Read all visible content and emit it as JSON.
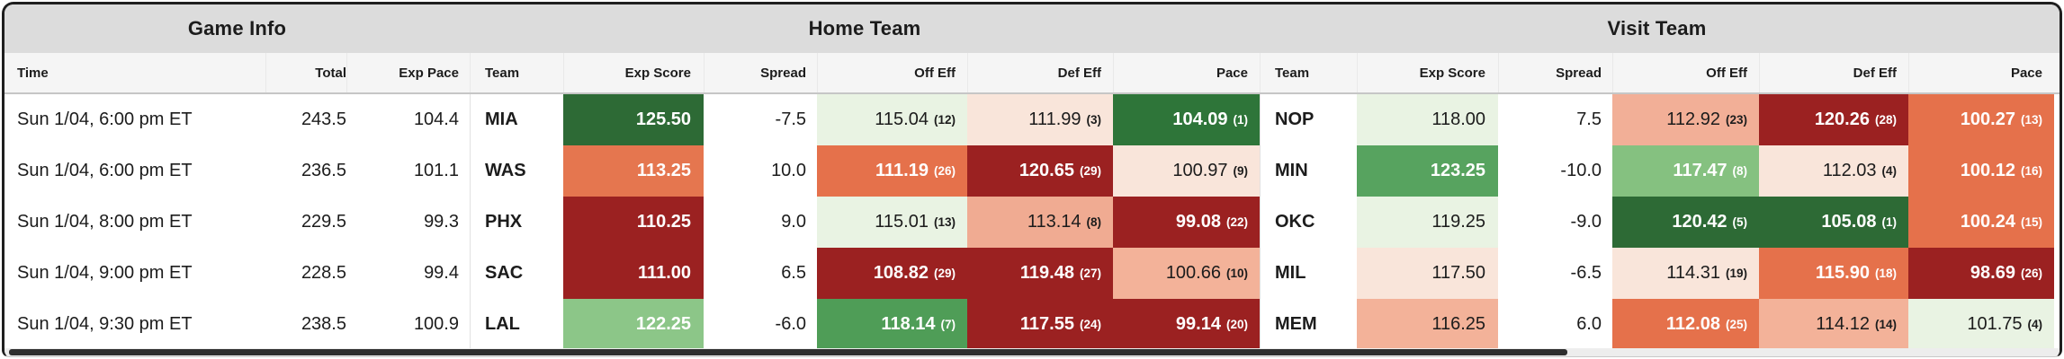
{
  "groups": {
    "game_info": "Game Info",
    "home": "Home Team",
    "visit": "Visit Team"
  },
  "columns": {
    "time": "Time",
    "total": "Total",
    "exp_pace": "Exp Pace",
    "team": "Team",
    "exp_score": "Exp Score",
    "spread": "Spread",
    "off_eff": "Off Eff",
    "def_eff": "Def Eff",
    "pace": "Pace"
  },
  "palette": {
    "dark_green": "#2d6a35",
    "mid_green": "#57a35f",
    "light_green": "#8cc688",
    "pale_green": "#e9f3e3",
    "pale_pink": "#f9e5da",
    "light_salmon": "#f3b299",
    "salmon": "#e5714b",
    "dark_red": "#9b2121",
    "header_band": "#dcdcdc",
    "header_row": "#f5f5f5",
    "text_dark": "#1c1c1c"
  },
  "rows": [
    {
      "time": "Sun 1/04, 6:00 pm ET",
      "total": "243.5",
      "exp_pace": "104.4",
      "home": {
        "team": "MIA",
        "spread": "-7.5",
        "exp_score": {
          "v": "125.50",
          "bg": "#2d6a35",
          "fg": "#ffffff"
        },
        "off_eff": {
          "v": "115.04",
          "r": "(12)",
          "bg": "#e9f3e3",
          "fg": "#1c1c1c"
        },
        "def_eff": {
          "v": "111.99",
          "r": "(3)",
          "bg": "#f9e5da",
          "fg": "#1c1c1c"
        },
        "pace": {
          "v": "104.09",
          "r": "(1)",
          "bg": "#2e7539",
          "fg": "#ffffff"
        }
      },
      "visit": {
        "team": "NOP",
        "spread": "7.5",
        "exp_score": {
          "v": "118.00",
          "bg": "#e9f3e3",
          "fg": "#1c1c1c"
        },
        "off_eff": {
          "v": "112.92",
          "r": "(23)",
          "bg": "#f2af97",
          "fg": "#1c1c1c"
        },
        "def_eff": {
          "v": "120.26",
          "r": "(28)",
          "bg": "#9b2121",
          "fg": "#ffffff"
        },
        "pace": {
          "v": "100.27",
          "r": "(13)",
          "bg": "#e5714b",
          "fg": "#ffffff"
        }
      }
    },
    {
      "time": "Sun 1/04, 6:00 pm ET",
      "total": "236.5",
      "exp_pace": "101.1",
      "home": {
        "team": "WAS",
        "spread": "10.0",
        "exp_score": {
          "v": "113.25",
          "bg": "#e5764f",
          "fg": "#ffffff"
        },
        "off_eff": {
          "v": "111.19",
          "r": "(26)",
          "bg": "#e5714b",
          "fg": "#ffffff"
        },
        "def_eff": {
          "v": "120.65",
          "r": "(29)",
          "bg": "#9b2121",
          "fg": "#ffffff"
        },
        "pace": {
          "v": "100.97",
          "r": "(9)",
          "bg": "#f9e5da",
          "fg": "#1c1c1c"
        }
      },
      "visit": {
        "team": "MIN",
        "spread": "-10.0",
        "exp_score": {
          "v": "123.25",
          "bg": "#57a35f",
          "fg": "#ffffff"
        },
        "off_eff": {
          "v": "117.47",
          "r": "(8)",
          "bg": "#85c180",
          "fg": "#ffffff"
        },
        "def_eff": {
          "v": "112.03",
          "r": "(4)",
          "bg": "#f9e5da",
          "fg": "#1c1c1c"
        },
        "pace": {
          "v": "100.12",
          "r": "(16)",
          "bg": "#e5714b",
          "fg": "#ffffff"
        }
      }
    },
    {
      "time": "Sun 1/04, 8:00 pm ET",
      "total": "229.5",
      "exp_pace": "99.3",
      "home": {
        "team": "PHX",
        "spread": "9.0",
        "exp_score": {
          "v": "110.25",
          "bg": "#9b2121",
          "fg": "#ffffff"
        },
        "off_eff": {
          "v": "115.01",
          "r": "(13)",
          "bg": "#e9f3e3",
          "fg": "#1c1c1c"
        },
        "def_eff": {
          "v": "113.14",
          "r": "(8)",
          "bg": "#f0ab92",
          "fg": "#1c1c1c"
        },
        "pace": {
          "v": "99.08",
          "r": "(22)",
          "bg": "#9b2121",
          "fg": "#ffffff"
        }
      },
      "visit": {
        "team": "OKC",
        "spread": "-9.0",
        "exp_score": {
          "v": "119.25",
          "bg": "#e9f3e3",
          "fg": "#1c1c1c"
        },
        "off_eff": {
          "v": "120.42",
          "r": "(5)",
          "bg": "#2d6a35",
          "fg": "#ffffff"
        },
        "def_eff": {
          "v": "105.08",
          "r": "(1)",
          "bg": "#2d6a35",
          "fg": "#ffffff"
        },
        "pace": {
          "v": "100.24",
          "r": "(15)",
          "bg": "#e5714b",
          "fg": "#ffffff"
        }
      }
    },
    {
      "time": "Sun 1/04, 9:00 pm ET",
      "total": "228.5",
      "exp_pace": "99.4",
      "home": {
        "team": "SAC",
        "spread": "6.5",
        "exp_score": {
          "v": "111.00",
          "bg": "#9b2121",
          "fg": "#ffffff"
        },
        "off_eff": {
          "v": "108.82",
          "r": "(29)",
          "bg": "#9b2121",
          "fg": "#ffffff"
        },
        "def_eff": {
          "v": "119.48",
          "r": "(27)",
          "bg": "#9b2121",
          "fg": "#ffffff"
        },
        "pace": {
          "v": "100.66",
          "r": "(10)",
          "bg": "#f3b299",
          "fg": "#1c1c1c"
        }
      },
      "visit": {
        "team": "MIL",
        "spread": "-6.5",
        "exp_score": {
          "v": "117.50",
          "bg": "#f9e5da",
          "fg": "#1c1c1c"
        },
        "off_eff": {
          "v": "114.31",
          "r": "(19)",
          "bg": "#f9e5da",
          "fg": "#1c1c1c"
        },
        "def_eff": {
          "v": "115.90",
          "r": "(18)",
          "bg": "#e5714b",
          "fg": "#ffffff"
        },
        "pace": {
          "v": "98.69",
          "r": "(26)",
          "bg": "#9b2121",
          "fg": "#ffffff"
        }
      }
    },
    {
      "time": "Sun 1/04, 9:30 pm ET",
      "total": "238.5",
      "exp_pace": "100.9",
      "home": {
        "team": "LAL",
        "spread": "-6.0",
        "exp_score": {
          "v": "122.25",
          "bg": "#8cc688",
          "fg": "#ffffff"
        },
        "off_eff": {
          "v": "118.14",
          "r": "(7)",
          "bg": "#4f9d57",
          "fg": "#ffffff"
        },
        "def_eff": {
          "v": "117.55",
          "r": "(24)",
          "bg": "#9b2121",
          "fg": "#ffffff"
        },
        "pace": {
          "v": "99.14",
          "r": "(20)",
          "bg": "#9b2121",
          "fg": "#ffffff"
        }
      },
      "visit": {
        "team": "MEM",
        "spread": "6.0",
        "exp_score": {
          "v": "116.25",
          "bg": "#f3b299",
          "fg": "#1c1c1c"
        },
        "off_eff": {
          "v": "112.08",
          "r": "(25)",
          "bg": "#e5714b",
          "fg": "#ffffff"
        },
        "def_eff": {
          "v": "114.12",
          "r": "(14)",
          "bg": "#f3b299",
          "fg": "#1c1c1c"
        },
        "pace": {
          "v": "101.75",
          "r": "(4)",
          "bg": "#e9f3e3",
          "fg": "#1c1c1c"
        }
      }
    }
  ]
}
